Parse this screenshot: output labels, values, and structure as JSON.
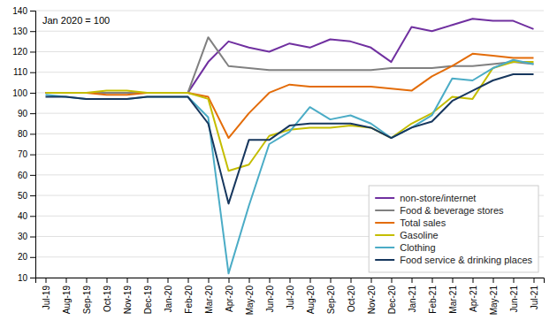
{
  "chart_data": {
    "type": "line",
    "annotations": [
      "Jan 2020 = 100"
    ],
    "categories": [
      "Jul-19",
      "Aug-19",
      "Sep-19",
      "Oct-19",
      "Nov-19",
      "Dec-19",
      "Jan-20",
      "Feb-20",
      "Mar-20",
      "Apr-20",
      "May-20",
      "Jun-20",
      "Jul-20",
      "Aug-20",
      "Sep-20",
      "Oct-20",
      "Nov-20",
      "Dec-20",
      "Jan-21",
      "Feb-21",
      "Mar-21",
      "Apr-21",
      "May-21",
      "Jun-21",
      "Jul-21"
    ],
    "series": [
      {
        "name": "non-store/internet",
        "color": "#7030a0",
        "values": [
          100,
          100,
          100,
          100,
          100,
          100,
          100,
          100,
          115,
          125,
          122,
          120,
          124,
          122,
          126,
          125,
          122,
          115,
          132,
          130,
          133,
          136,
          135,
          135,
          131
        ]
      },
      {
        "name": "Food & beverage stores",
        "color": "#808080",
        "values": [
          100,
          100,
          100,
          100,
          100,
          100,
          100,
          100,
          127,
          113,
          112,
          111,
          111,
          111,
          111,
          111,
          111,
          112,
          112,
          112,
          113,
          113,
          114,
          115,
          114
        ]
      },
      {
        "name": "Total sales",
        "color": "#e36c09",
        "values": [
          100,
          100,
          100,
          99,
          99,
          100,
          100,
          100,
          98,
          78,
          90,
          100,
          104,
          103,
          103,
          103,
          103,
          102,
          101,
          108,
          113,
          119,
          118,
          117,
          117
        ]
      },
      {
        "name": "Gasoline",
        "color": "#c4bd00",
        "values": [
          100,
          100,
          100,
          101,
          101,
          100,
          100,
          100,
          97,
          62,
          65,
          79,
          82,
          83,
          83,
          84,
          83,
          78,
          85,
          90,
          98,
          97,
          112,
          115,
          115
        ]
      },
      {
        "name": "Clothing",
        "color": "#4bacc6",
        "values": [
          99,
          98,
          97,
          97,
          97,
          98,
          98,
          98,
          88,
          12,
          45,
          75,
          81,
          93,
          87,
          89,
          85,
          78,
          83,
          89,
          107,
          106,
          112,
          116,
          114
        ]
      },
      {
        "name": "Food service & drinking places",
        "color": "#17375e",
        "values": [
          98,
          98,
          97,
          97,
          97,
          98,
          98,
          98,
          85,
          46,
          77,
          77,
          84,
          85,
          85,
          85,
          83,
          78,
          83,
          86,
          96,
          101,
          106,
          109,
          109
        ]
      }
    ],
    "ylim": [
      10,
      140
    ],
    "yticks": [
      10,
      20,
      30,
      40,
      50,
      60,
      70,
      80,
      90,
      100,
      110,
      120,
      130,
      140
    ],
    "grid": true,
    "legend": "lower right"
  }
}
